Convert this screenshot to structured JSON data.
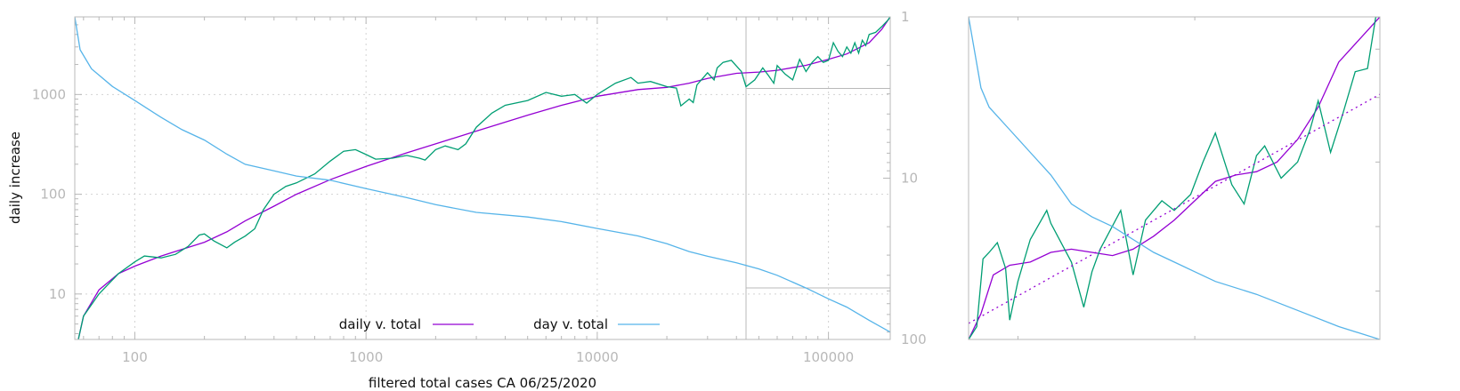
{
  "chart_data": [
    {
      "type": "line",
      "xlabel": "filtered total cases CA 06/25/2020",
      "ylabel": "daily increase",
      "xscale": "log",
      "yscale": "log",
      "xlim": [
        55,
        185000
      ],
      "ylim": [
        3.5,
        6000
      ],
      "y2lim": [
        100,
        1
      ],
      "y2scale": "log-reversed",
      "grid": true,
      "legend_position": "bottom-center",
      "x_ticks": [
        100,
        1000,
        10000,
        100000
      ],
      "x_tick_labels": [
        "100",
        "1000",
        "10000",
        "100000"
      ],
      "y_ticks": [
        10,
        100,
        1000
      ],
      "y_tick_labels": [
        "10",
        "100",
        "1000"
      ],
      "y2_ticks": [
        1,
        10,
        100
      ],
      "y2_tick_labels": [
        "1",
        "10",
        "100"
      ],
      "colors": {
        "smooth": "#9400d3",
        "raw": "#009e73",
        "day": "#56b4e9"
      },
      "inset_x": 44000,
      "inset_y": [
        1150,
        11.5
      ],
      "series": [
        {
          "name": "daily v. total",
          "color": "#9400d3",
          "axis": "y",
          "points": [
            [
              57,
              3.5
            ],
            [
              60,
              6
            ],
            [
              70,
              11
            ],
            [
              85,
              16
            ],
            [
              100,
              19
            ],
            [
              130,
              24
            ],
            [
              160,
              28
            ],
            [
              200,
              33
            ],
            [
              250,
              42
            ],
            [
              300,
              54
            ],
            [
              400,
              76
            ],
            [
              500,
              100
            ],
            [
              700,
              140
            ],
            [
              1000,
              190
            ],
            [
              1500,
              260
            ],
            [
              2000,
              320
            ],
            [
              3000,
              430
            ],
            [
              5000,
              620
            ],
            [
              7000,
              780
            ],
            [
              10000,
              960
            ],
            [
              15000,
              1120
            ],
            [
              20000,
              1180
            ],
            [
              25000,
              1300
            ],
            [
              30000,
              1450
            ],
            [
              40000,
              1630
            ],
            [
              50000,
              1680
            ],
            [
              60000,
              1750
            ],
            [
              80000,
              1960
            ],
            [
              100000,
              2250
            ],
            [
              120000,
              2550
            ],
            [
              150000,
              3300
            ],
            [
              170000,
              4500
            ],
            [
              185000,
              6000
            ]
          ]
        },
        {
          "name": "",
          "color": "#009e73",
          "axis": "y",
          "points": [
            [
              57,
              3.5
            ],
            [
              60,
              6
            ],
            [
              70,
              10
            ],
            [
              85,
              16
            ],
            [
              100,
              21
            ],
            [
              110,
              24
            ],
            [
              130,
              23
            ],
            [
              150,
              25
            ],
            [
              170,
              30
            ],
            [
              190,
              39
            ],
            [
              200,
              40
            ],
            [
              220,
              34
            ],
            [
              250,
              29
            ],
            [
              270,
              33
            ],
            [
              300,
              38
            ],
            [
              330,
              45
            ],
            [
              360,
              70
            ],
            [
              400,
              100
            ],
            [
              450,
              120
            ],
            [
              500,
              130
            ],
            [
              600,
              160
            ],
            [
              700,
              215
            ],
            [
              800,
              270
            ],
            [
              900,
              280
            ],
            [
              1000,
              250
            ],
            [
              1100,
              225
            ],
            [
              1300,
              230
            ],
            [
              1500,
              245
            ],
            [
              1700,
              230
            ],
            [
              1800,
              220
            ],
            [
              2000,
              280
            ],
            [
              2200,
              305
            ],
            [
              2500,
              280
            ],
            [
              2700,
              320
            ],
            [
              3000,
              470
            ],
            [
              3500,
              650
            ],
            [
              4000,
              780
            ],
            [
              5000,
              870
            ],
            [
              6000,
              1050
            ],
            [
              7000,
              960
            ],
            [
              8000,
              1000
            ],
            [
              9000,
              820
            ],
            [
              10000,
              1000
            ],
            [
              12000,
              1300
            ],
            [
              14000,
              1480
            ],
            [
              15000,
              1300
            ],
            [
              17000,
              1350
            ],
            [
              20000,
              1200
            ],
            [
              22000,
              1160
            ],
            [
              23000,
              770
            ],
            [
              25000,
              900
            ],
            [
              26000,
              830
            ],
            [
              27000,
              1250
            ],
            [
              30000,
              1650
            ],
            [
              32000,
              1400
            ],
            [
              33000,
              1850
            ],
            [
              35000,
              2100
            ],
            [
              38000,
              2200
            ],
            [
              42000,
              1700
            ],
            [
              44000,
              1200
            ],
            [
              48000,
              1400
            ],
            [
              52000,
              1850
            ],
            [
              55000,
              1550
            ],
            [
              58000,
              1300
            ],
            [
              60000,
              1950
            ],
            [
              65000,
              1600
            ],
            [
              70000,
              1400
            ],
            [
              75000,
              2250
            ],
            [
              80000,
              1700
            ],
            [
              85000,
              2100
            ],
            [
              90000,
              2400
            ],
            [
              95000,
              2100
            ],
            [
              100000,
              2200
            ],
            [
              105000,
              3300
            ],
            [
              110000,
              2700
            ],
            [
              115000,
              2400
            ],
            [
              120000,
              3000
            ],
            [
              125000,
              2600
            ],
            [
              130000,
              3300
            ],
            [
              135000,
              2600
            ],
            [
              140000,
              3500
            ],
            [
              145000,
              3100
            ],
            [
              150000,
              4000
            ],
            [
              160000,
              4200
            ],
            [
              170000,
              4800
            ],
            [
              180000,
              5500
            ],
            [
              185000,
              6000
            ]
          ]
        },
        {
          "name": "day v. total",
          "color": "#56b4e9",
          "axis": "y2",
          "points": [
            [
              55,
              1
            ],
            [
              58,
              1.6
            ],
            [
              65,
              2.1
            ],
            [
              80,
              2.7
            ],
            [
              100,
              3.3
            ],
            [
              130,
              4.2
            ],
            [
              160,
              5
            ],
            [
              200,
              5.8
            ],
            [
              250,
              7.1
            ],
            [
              300,
              8.2
            ],
            [
              400,
              9
            ],
            [
              500,
              9.7
            ],
            [
              700,
              10.3
            ],
            [
              1000,
              11.6
            ],
            [
              1500,
              13.2
            ],
            [
              2000,
              14.6
            ],
            [
              3000,
              16.3
            ],
            [
              5000,
              17.4
            ],
            [
              7000,
              18.6
            ],
            [
              10000,
              20.5
            ],
            [
              15000,
              22.8
            ],
            [
              20000,
              25.5
            ],
            [
              25000,
              28.5
            ],
            [
              30000,
              30.5
            ],
            [
              40000,
              33.5
            ],
            [
              50000,
              36.5
            ],
            [
              60000,
              40
            ],
            [
              80000,
              48
            ],
            [
              100000,
              56
            ],
            [
              120000,
              63
            ],
            [
              150000,
              76
            ],
            [
              185000,
              90
            ]
          ]
        }
      ]
    },
    {
      "type": "line",
      "title": "",
      "xlabel": "",
      "ylabel": "",
      "grid": false,
      "description_free": true,
      "xlim": [
        0,
        1
      ],
      "ylim": [
        0,
        1
      ],
      "colors": {
        "smooth": "#9400d3",
        "raw": "#009e73",
        "day": "#56b4e9",
        "trend": "#9400d3"
      },
      "series": [
        {
          "name": "",
          "color": "#9400d3",
          "points": [
            [
              0,
              0
            ],
            [
              0.03,
              0.08
            ],
            [
              0.06,
              0.2
            ],
            [
              0.1,
              0.23
            ],
            [
              0.15,
              0.24
            ],
            [
              0.2,
              0.27
            ],
            [
              0.25,
              0.28
            ],
            [
              0.3,
              0.27
            ],
            [
              0.35,
              0.26
            ],
            [
              0.4,
              0.28
            ],
            [
              0.45,
              0.32
            ],
            [
              0.5,
              0.37
            ],
            [
              0.55,
              0.43
            ],
            [
              0.6,
              0.49
            ],
            [
              0.65,
              0.51
            ],
            [
              0.7,
              0.52
            ],
            [
              0.75,
              0.55
            ],
            [
              0.8,
              0.62
            ],
            [
              0.85,
              0.72
            ],
            [
              0.9,
              0.86
            ],
            [
              0.95,
              0.93
            ],
            [
              1.0,
              1.0
            ]
          ]
        },
        {
          "name": "",
          "color": "#009e73",
          "points": [
            [
              0,
              0
            ],
            [
              0.02,
              0.04
            ],
            [
              0.035,
              0.25
            ],
            [
              0.05,
              0.27
            ],
            [
              0.07,
              0.3
            ],
            [
              0.09,
              0.22
            ],
            [
              0.1,
              0.06
            ],
            [
              0.12,
              0.18
            ],
            [
              0.15,
              0.31
            ],
            [
              0.19,
              0.4
            ],
            [
              0.2,
              0.36
            ],
            [
              0.25,
              0.24
            ],
            [
              0.28,
              0.1
            ],
            [
              0.3,
              0.21
            ],
            [
              0.32,
              0.28
            ],
            [
              0.37,
              0.4
            ],
            [
              0.4,
              0.2
            ],
            [
              0.43,
              0.37
            ],
            [
              0.47,
              0.43
            ],
            [
              0.5,
              0.4
            ],
            [
              0.54,
              0.45
            ],
            [
              0.57,
              0.55
            ],
            [
              0.6,
              0.64
            ],
            [
              0.64,
              0.48
            ],
            [
              0.67,
              0.42
            ],
            [
              0.7,
              0.57
            ],
            [
              0.72,
              0.6
            ],
            [
              0.76,
              0.5
            ],
            [
              0.8,
              0.55
            ],
            [
              0.83,
              0.65
            ],
            [
              0.85,
              0.74
            ],
            [
              0.88,
              0.58
            ],
            [
              0.91,
              0.7
            ],
            [
              0.94,
              0.83
            ],
            [
              0.97,
              0.84
            ],
            [
              0.99,
              1.0
            ],
            [
              1.0,
              1.0
            ]
          ]
        },
        {
          "name": "",
          "color": "#56b4e9",
          "points": [
            [
              0,
              1.0
            ],
            [
              0.03,
              0.78
            ],
            [
              0.05,
              0.72
            ],
            [
              0.1,
              0.65
            ],
            [
              0.15,
              0.58
            ],
            [
              0.2,
              0.51
            ],
            [
              0.25,
              0.42
            ],
            [
              0.3,
              0.38
            ],
            [
              0.35,
              0.35
            ],
            [
              0.4,
              0.31
            ],
            [
              0.45,
              0.27
            ],
            [
              0.5,
              0.24
            ],
            [
              0.55,
              0.21
            ],
            [
              0.6,
              0.18
            ],
            [
              0.7,
              0.14
            ],
            [
              0.8,
              0.09
            ],
            [
              0.9,
              0.04
            ],
            [
              1.0,
              0.0
            ]
          ]
        },
        {
          "name": "",
          "color": "#9400d3",
          "dashed": true,
          "points": [
            [
              0,
              0.05
            ],
            [
              1.0,
              0.76
            ]
          ]
        }
      ]
    }
  ]
}
